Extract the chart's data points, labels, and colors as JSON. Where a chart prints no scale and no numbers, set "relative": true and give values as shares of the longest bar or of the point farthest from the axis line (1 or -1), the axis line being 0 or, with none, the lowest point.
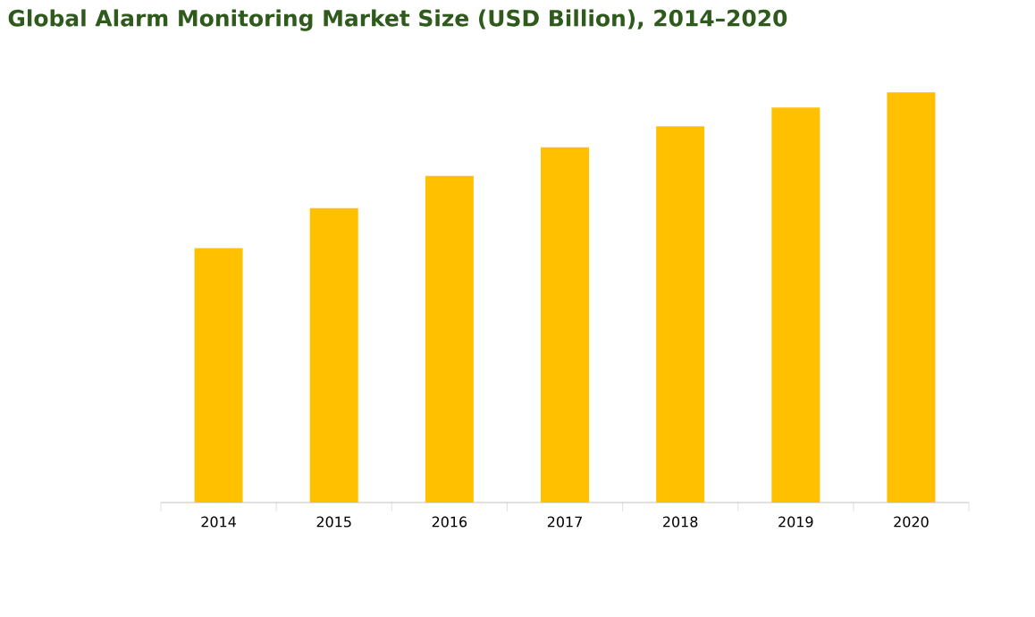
{
  "chart_data": {
    "type": "bar",
    "title": "Global Alarm Monitoring Market Size (USD Billion), 2014–2020",
    "categories": [
      "2014",
      "2015",
      "2016",
      "2017",
      "2018",
      "2019",
      "2020"
    ],
    "values": [
      0.62,
      0.718,
      0.796,
      0.866,
      0.917,
      0.963,
      1
    ],
    "color": "#ffc000",
    "relative": true
  }
}
